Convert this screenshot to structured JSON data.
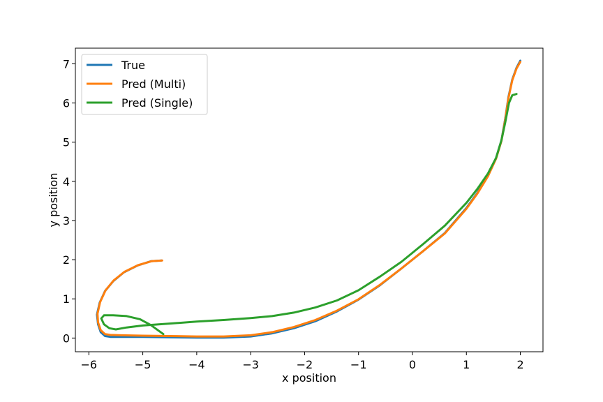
{
  "chart_data": {
    "type": "line",
    "title": "",
    "xlabel": "x position",
    "ylabel": "y position",
    "xlim": [
      -6.25,
      2.42
    ],
    "ylim": [
      -0.35,
      7.4
    ],
    "xticks": [
      -6,
      -5,
      -4,
      -3,
      -2,
      -1,
      0,
      1,
      2
    ],
    "yticks": [
      0,
      1,
      2,
      3,
      4,
      5,
      6,
      7
    ],
    "x_tick_labels": [
      "−6",
      "−5",
      "−4",
      "−3",
      "−2",
      "−1",
      "0",
      "1",
      "2"
    ],
    "y_tick_labels": [
      "0",
      "1",
      "2",
      "3",
      "4",
      "5",
      "6",
      "7"
    ],
    "grid": false,
    "legend_position": "top-left",
    "series": [
      {
        "name": "True",
        "color": "#1f77b4",
        "points": [
          [
            2.0,
            7.08
          ],
          [
            1.93,
            6.9
          ],
          [
            1.85,
            6.6
          ],
          [
            1.78,
            6.15
          ],
          [
            1.72,
            5.6
          ],
          [
            1.65,
            5.05
          ],
          [
            1.55,
            4.6
          ],
          [
            1.4,
            4.15
          ],
          [
            1.2,
            3.7
          ],
          [
            1.0,
            3.32
          ],
          [
            0.6,
            2.68
          ],
          [
            0.2,
            2.22
          ],
          [
            -0.2,
            1.78
          ],
          [
            -0.6,
            1.35
          ],
          [
            -1.0,
            0.98
          ],
          [
            -1.4,
            0.68
          ],
          [
            -1.8,
            0.43
          ],
          [
            -2.2,
            0.25
          ],
          [
            -2.6,
            0.12
          ],
          [
            -3.0,
            0.04
          ],
          [
            -3.5,
            0.01
          ],
          [
            -4.0,
            0.01
          ],
          [
            -4.5,
            0.02
          ],
          [
            -5.0,
            0.03
          ],
          [
            -5.4,
            0.03
          ],
          [
            -5.6,
            0.03
          ],
          [
            -5.7,
            0.05
          ],
          [
            -5.78,
            0.15
          ],
          [
            -5.83,
            0.35
          ],
          [
            -5.85,
            0.6
          ],
          [
            -5.8,
            0.9
          ],
          [
            -5.7,
            1.2
          ],
          [
            -5.55,
            1.45
          ],
          [
            -5.35,
            1.68
          ],
          [
            -5.1,
            1.85
          ],
          [
            -4.85,
            1.96
          ],
          [
            -4.65,
            1.98
          ]
        ]
      },
      {
        "name": "Pred (Multi)",
        "color": "#ff7f0e",
        "points": [
          [
            2.0,
            7.05
          ],
          [
            1.93,
            6.88
          ],
          [
            1.85,
            6.58
          ],
          [
            1.78,
            6.12
          ],
          [
            1.72,
            5.58
          ],
          [
            1.65,
            5.03
          ],
          [
            1.55,
            4.58
          ],
          [
            1.4,
            4.13
          ],
          [
            1.2,
            3.68
          ],
          [
            1.0,
            3.3
          ],
          [
            0.6,
            2.67
          ],
          [
            0.2,
            2.22
          ],
          [
            -0.2,
            1.78
          ],
          [
            -0.6,
            1.36
          ],
          [
            -1.0,
            0.99
          ],
          [
            -1.4,
            0.7
          ],
          [
            -1.8,
            0.46
          ],
          [
            -2.2,
            0.28
          ],
          [
            -2.6,
            0.15
          ],
          [
            -3.0,
            0.07
          ],
          [
            -3.5,
            0.04
          ],
          [
            -4.0,
            0.04
          ],
          [
            -4.5,
            0.05
          ],
          [
            -5.0,
            0.06
          ],
          [
            -5.4,
            0.07
          ],
          [
            -5.6,
            0.08
          ],
          [
            -5.7,
            0.1
          ],
          [
            -5.78,
            0.2
          ],
          [
            -5.83,
            0.4
          ],
          [
            -5.84,
            0.62
          ],
          [
            -5.79,
            0.92
          ],
          [
            -5.69,
            1.22
          ],
          [
            -5.54,
            1.47
          ],
          [
            -5.34,
            1.69
          ],
          [
            -5.09,
            1.86
          ],
          [
            -4.84,
            1.96
          ],
          [
            -4.64,
            1.98
          ]
        ]
      },
      {
        "name": "Pred (Single)",
        "color": "#2ca02c",
        "points": [
          [
            1.93,
            6.23
          ],
          [
            1.85,
            6.2
          ],
          [
            1.79,
            6.0
          ],
          [
            1.72,
            5.5
          ],
          [
            1.65,
            5.05
          ],
          [
            1.55,
            4.6
          ],
          [
            1.4,
            4.2
          ],
          [
            1.2,
            3.8
          ],
          [
            1.0,
            3.45
          ],
          [
            0.6,
            2.87
          ],
          [
            0.2,
            2.4
          ],
          [
            -0.2,
            1.95
          ],
          [
            -0.6,
            1.57
          ],
          [
            -1.0,
            1.22
          ],
          [
            -1.4,
            0.96
          ],
          [
            -1.8,
            0.78
          ],
          [
            -2.2,
            0.65
          ],
          [
            -2.6,
            0.56
          ],
          [
            -3.0,
            0.51
          ],
          [
            -3.5,
            0.46
          ],
          [
            -4.0,
            0.42
          ],
          [
            -4.5,
            0.37
          ],
          [
            -5.0,
            0.32
          ],
          [
            -5.3,
            0.27
          ],
          [
            -5.5,
            0.22
          ],
          [
            -5.62,
            0.25
          ],
          [
            -5.72,
            0.35
          ],
          [
            -5.77,
            0.5
          ],
          [
            -5.72,
            0.58
          ],
          [
            -5.55,
            0.58
          ],
          [
            -5.3,
            0.56
          ],
          [
            -5.05,
            0.48
          ],
          [
            -4.85,
            0.33
          ],
          [
            -4.72,
            0.2
          ],
          [
            -4.62,
            0.1
          ]
        ]
      }
    ]
  }
}
